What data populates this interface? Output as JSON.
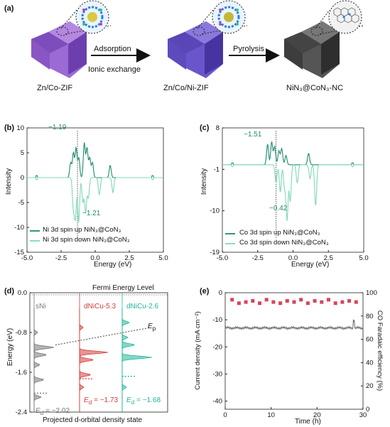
{
  "panel_a": {
    "label": "(a)",
    "step1_top": "Adsorption",
    "step1_bottom": "Ionic exchange",
    "step2_top": "Pyrolysis",
    "mat1": "Zn/Co-ZIF",
    "mat2": "Zn/Co/Ni-ZIF",
    "mat3": "NiN₃@CoN₃-NC",
    "colors": {
      "mat1": "#8e5bc8",
      "mat2": "#6b54c8",
      "mat3": "#4b4b4b"
    }
  },
  "chart_data": [
    {
      "panel": "(b)",
      "type": "line",
      "xlabel": "Energy (eV)",
      "ylabel": "Intensity",
      "xlim": [
        -5.0,
        5.0
      ],
      "ylim": [
        -15,
        10
      ],
      "xticks": [
        "-5.0",
        "-2.5",
        "0.0",
        "2.5",
        "5.0"
      ],
      "yticks": [
        "10",
        "5",
        "0",
        "-5",
        "-10",
        "-15"
      ],
      "annotations": [
        "−1.19",
        "−1.21"
      ],
      "series": [
        {
          "name": "Ni 3d spin up NiN₃@CoN₃",
          "color": "#1c8a6e",
          "peaks": [
            [
              -1.8,
              3
            ],
            [
              -1.6,
              5
            ],
            [
              -1.4,
              6
            ],
            [
              -1.2,
              4
            ],
            [
              -0.8,
              7
            ],
            [
              -0.6,
              6
            ],
            [
              -0.4,
              4
            ],
            [
              -0.2,
              3
            ],
            [
              1.1,
              2.5
            ]
          ]
        },
        {
          "name": "Ni 3d spin down NiN₃@CoN₃",
          "color": "#7fd8b8",
          "peaks": [
            [
              -1.6,
              -6
            ],
            [
              -1.45,
              -8
            ],
            [
              -1.21,
              -9
            ],
            [
              -0.9,
              -5
            ],
            [
              -0.7,
              -7
            ],
            [
              -0.5,
              -4
            ],
            [
              0.3,
              -3.5
            ],
            [
              1.3,
              -3
            ]
          ]
        }
      ]
    },
    {
      "panel": "(c)",
      "type": "line",
      "xlabel": "Energy (eV)",
      "ylabel": "Intensity",
      "xlim": [
        -5.0,
        5.0
      ],
      "ylim": [
        -19,
        8
      ],
      "xticks": [
        "-5.0",
        "-2.5",
        "0.0",
        "2.5",
        "5.0"
      ],
      "yticks": [
        "8",
        "-1",
        "-10",
        "-19"
      ],
      "annotations": [
        "−1.51",
        "−0.42"
      ],
      "series": [
        {
          "name": "Co 3d spin up NiN₃@CoN₃",
          "color": "#1c8a6e",
          "peaks": [
            [
              -1.8,
              4.5
            ],
            [
              -1.51,
              5
            ],
            [
              -1.3,
              4
            ],
            [
              -1.0,
              3
            ],
            [
              -0.8,
              3.5
            ],
            [
              -0.5,
              2
            ],
            [
              1.1,
              2.5
            ]
          ]
        },
        {
          "name": "Co 3d spin down NiN₃@CoN₃",
          "color": "#7fd8b8",
          "peaks": [
            [
              -1.2,
              -4
            ],
            [
              -0.9,
              -6
            ],
            [
              -0.6,
              -5
            ],
            [
              -0.42,
              -12
            ],
            [
              -0.2,
              -8
            ],
            [
              0.3,
              -4
            ],
            [
              1.2,
              -3
            ],
            [
              1.6,
              -9
            ]
          ]
        }
      ]
    },
    {
      "panel": "(d)",
      "type": "area",
      "ylabel": "Energy (eV)",
      "xlabel": "Projected d-orbital density state",
      "ylim": [
        -2.4,
        0.0
      ],
      "yticks": [
        "0.0",
        "-0.8",
        "-1.6",
        "-2.4"
      ],
      "top_label": "Fermi Energy Level",
      "ep_label": "E",
      "ep_sub": "p",
      "columns": [
        {
          "name": "sNi",
          "color": "#777777",
          "Ed_prefix": "E",
          "Ed_sub": "d",
          "Ed_value": " = −2.02",
          "Ed": -2.02
        },
        {
          "name": "dNiCu-5.3",
          "color": "#d43c3c",
          "Ed_prefix": "E",
          "Ed_sub": "d",
          "Ed_value": " = −1.73",
          "Ed": -1.73
        },
        {
          "name": "dNiCu-2.6",
          "color": "#21b69a",
          "Ed_prefix": "E",
          "Ed_sub": "d",
          "Ed_value": " = −1.68",
          "Ed": -1.68
        }
      ]
    },
    {
      "panel": "(e)",
      "type": "scatter",
      "xlabel": "Time (h)",
      "ylabel_left": "Current density (mA cm⁻²)",
      "ylabel_right": "CO Faradaic efficiency (%)",
      "xlim": [
        0,
        30
      ],
      "ylim_left": [
        -43,
        0
      ],
      "ylim_right": [
        0,
        100
      ],
      "xticks": [
        "0",
        "10",
        "20",
        "30"
      ],
      "yticks_left": [
        "0",
        "-10",
        "-20",
        "-30",
        "-40"
      ],
      "yticks_right": [
        "100",
        "80",
        "60",
        "40",
        "20",
        "0"
      ],
      "current_density_approx": -13,
      "fe_points": [
        [
          1.5,
          94
        ],
        [
          3,
          91
        ],
        [
          4.5,
          92
        ],
        [
          6,
          93
        ],
        [
          7.5,
          91
        ],
        [
          9,
          94
        ],
        [
          10.5,
          92
        ],
        [
          12,
          91
        ],
        [
          13.5,
          93
        ],
        [
          15,
          92
        ],
        [
          16.5,
          94
        ],
        [
          18,
          91
        ],
        [
          19.5,
          93
        ],
        [
          21,
          92
        ],
        [
          22.5,
          94
        ],
        [
          24,
          91
        ],
        [
          25.5,
          92
        ],
        [
          27,
          93
        ],
        [
          28.5,
          92
        ]
      ],
      "colors": {
        "fe": "#d6455a",
        "current": "#666666"
      }
    }
  ]
}
